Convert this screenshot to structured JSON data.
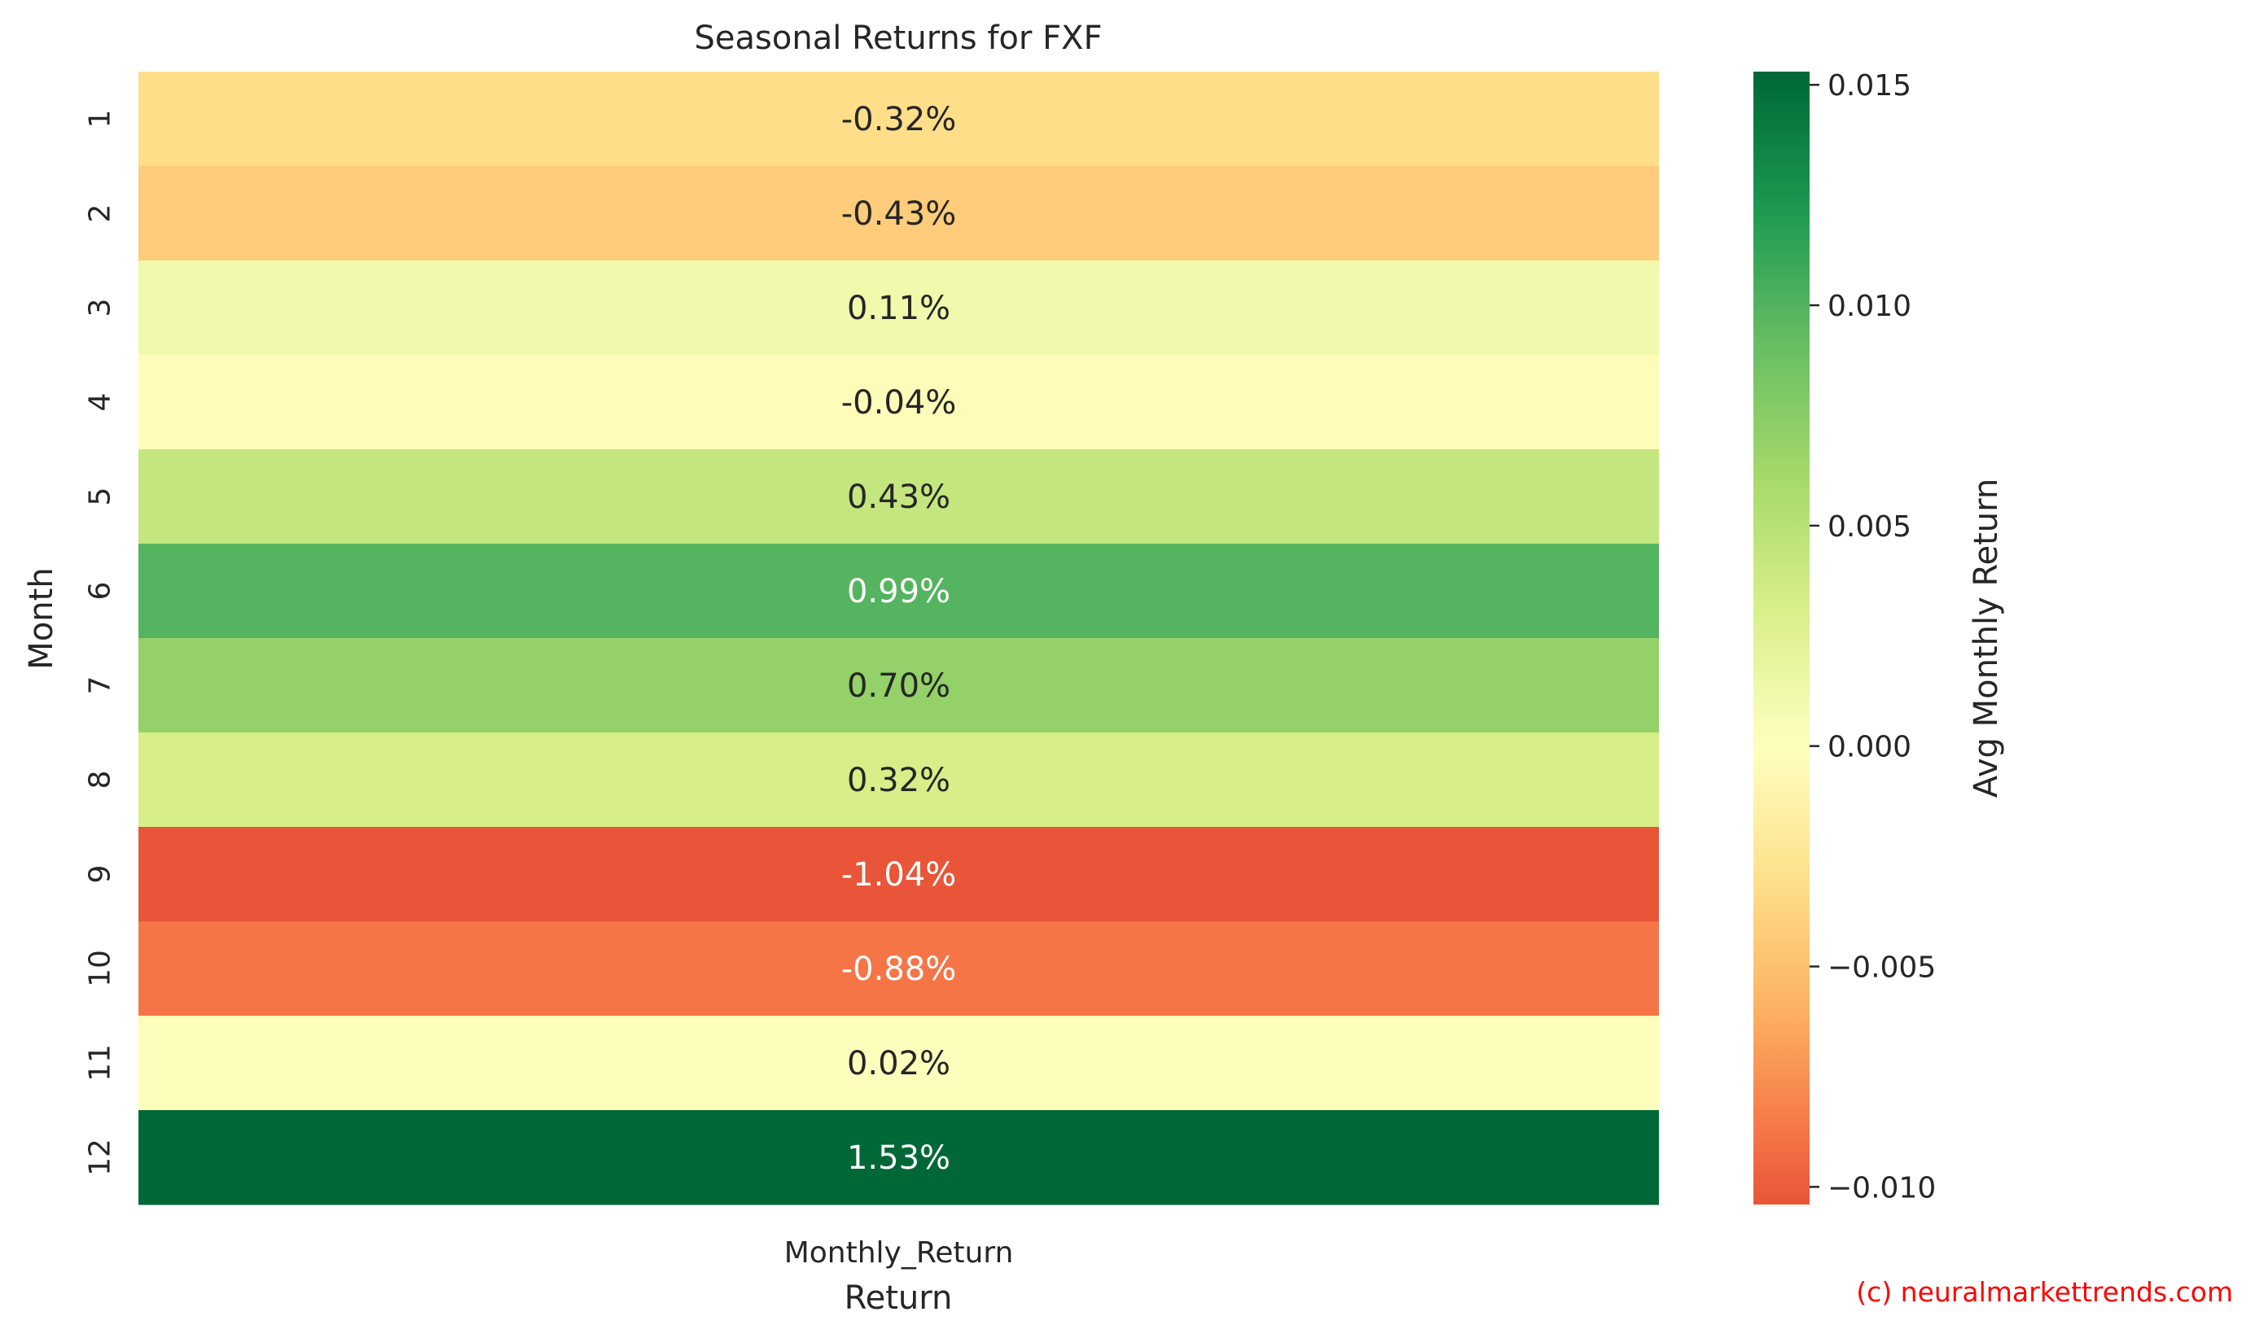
{
  "chart_data": {
    "type": "heatmap",
    "title": "Seasonal Returns for FXF",
    "xlabel": "Return",
    "ylabel": "Month",
    "columns": [
      "Monthly_Return"
    ],
    "rows": [
      "1",
      "2",
      "3",
      "4",
      "5",
      "6",
      "7",
      "8",
      "9",
      "10",
      "11",
      "12"
    ],
    "values": [
      -0.0032,
      -0.0043,
      0.0011,
      -0.0004,
      0.0043,
      0.0099,
      0.007,
      0.0032,
      -0.0104,
      -0.0088,
      0.0002,
      0.0153
    ],
    "annotations": [
      "-0.32%",
      "-0.43%",
      "0.11%",
      "-0.04%",
      "0.43%",
      "0.99%",
      "0.70%",
      "0.32%",
      "-1.04%",
      "-0.88%",
      "0.02%",
      "1.53%"
    ],
    "colorbar": {
      "label": "Avg Monthly Return",
      "range": [
        -0.0104,
        0.0153
      ],
      "ticks": [
        0.015,
        0.01,
        0.005,
        0.0,
        -0.005,
        -0.01
      ],
      "tick_labels": [
        "0.015",
        "0.010",
        "0.005",
        "0.000",
        "−0.005",
        "−0.010"
      ],
      "colormap": "RdYlGn",
      "center": 0
    },
    "grid": false
  },
  "watermark": "(c) neuralmarkettrends.com",
  "colors": {
    "watermark": "#ff0000",
    "dark_text": "#262626",
    "light_text": "#ffffff"
  }
}
